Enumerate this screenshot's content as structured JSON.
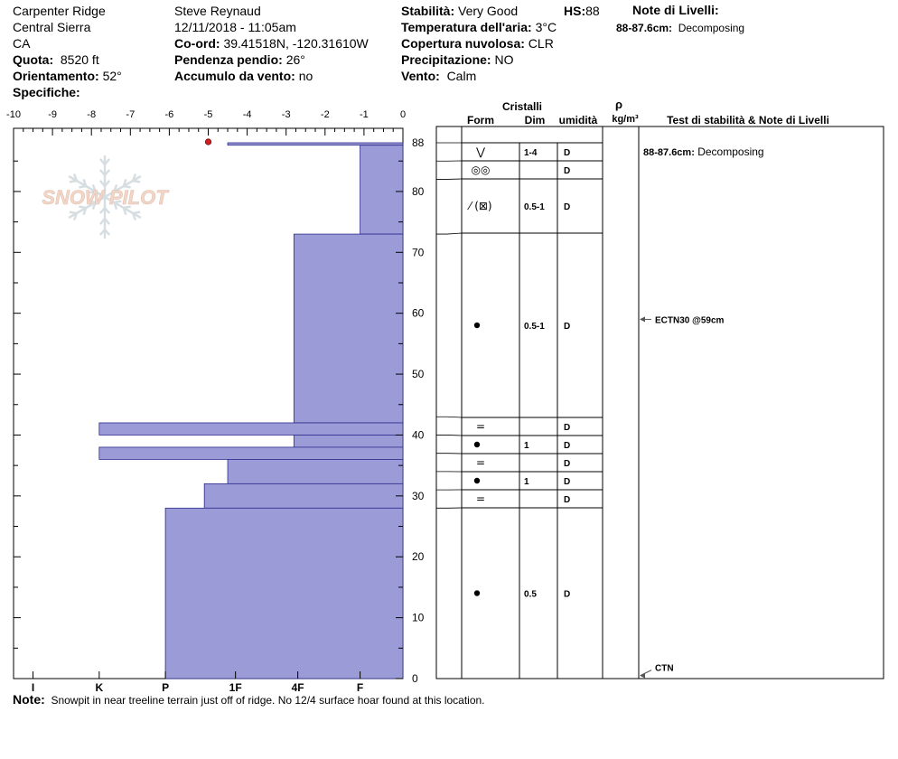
{
  "header": {
    "location": "Carpenter Ridge",
    "range": "Central Sierra",
    "state": "CA",
    "elevation": {
      "label": "Quota:",
      "value": "8520 ft"
    },
    "aspect": {
      "label": "Orientamento:",
      "value": "52°"
    },
    "specifics": {
      "label": "Specifiche:",
      "value": ""
    },
    "observer": "Steve Reynaud",
    "datetime": "12/11/2018 - 11:05am",
    "coords": {
      "label": "Co-ord:",
      "value": "39.41518N, -120.31610W"
    },
    "slope": {
      "label": "Pendenza pendio:",
      "value": "26°"
    },
    "wind_loading": {
      "label": "Accumulo da vento:",
      "value": "no"
    },
    "stability": {
      "label": "Stabilità:",
      "value": "Very Good"
    },
    "hs": {
      "label": "HS:",
      "value": "88"
    },
    "air_temp": {
      "label": "Temperatura dell'aria:",
      "value": "3°C"
    },
    "sky": {
      "label": "Copertura nuvolosa:",
      "value": "CLR"
    },
    "precip": {
      "label": "Precipitazione:",
      "value": "NO"
    },
    "wind": {
      "label": "Vento:",
      "value": "Calm"
    },
    "layer_notes_title": "Note di Livelli:",
    "layer_notes": [
      {
        "range": "88-87.6cm:",
        "text": "Decomposing"
      }
    ]
  },
  "logo": {
    "text": "SNOW PILOT"
  },
  "footer": {
    "label": "Note:",
    "text": "Snowpit in near treeline terrain just off of ridge.  No 12/4 surface hoar found at this location."
  },
  "table_headers": {
    "crystals": "Cristalli",
    "form": "Form",
    "size": "Dim",
    "moisture": "umidità",
    "density": "ρ",
    "density_unit": "kg/m³",
    "tests": "Test di stabilità & Note di Livelli"
  },
  "chart_data": {
    "type": "bar",
    "description_axes": {
      "temperature_ticks": [
        "-10",
        "-9",
        "-8",
        "-7",
        "-6",
        "-5",
        "-4",
        "-3",
        "-2",
        "-1",
        "0"
      ],
      "temperature_range": [
        -10,
        0
      ],
      "height_ticks": [
        "0",
        "10",
        "20",
        "30",
        "40",
        "50",
        "60",
        "70",
        "80",
        "88"
      ],
      "height_range": [
        0,
        88
      ],
      "hardness_ticks": [
        "I",
        "K",
        "P",
        "1F",
        "4F",
        "F"
      ]
    },
    "temperature_points": [
      {
        "temp": -5,
        "height": 88
      }
    ],
    "hardness_layers": [
      {
        "top": 88,
        "bottom": 87.6,
        "hardness": 4.5
      },
      {
        "top": 87.6,
        "bottom": 73,
        "hardness": 1.1
      },
      {
        "top": 73,
        "bottom": 42,
        "hardness": 2.8
      },
      {
        "top": 42,
        "bottom": 40,
        "hardness": 7.8
      },
      {
        "top": 40,
        "bottom": 38,
        "hardness": 2.8
      },
      {
        "top": 38,
        "bottom": 36,
        "hardness": 7.8
      },
      {
        "top": 36,
        "bottom": 32,
        "hardness": 4.5
      },
      {
        "top": 32,
        "bottom": 28,
        "hardness": 5.1
      },
      {
        "top": 28,
        "bottom": 0,
        "hardness": 6.1
      }
    ],
    "hardness_ranges_map": "hardness expressed in temperature-axis units (0 = F side, 10 = I side)",
    "crystal_layers": [
      {
        "top": 88,
        "bottom": 85,
        "form": "⋁",
        "size": "1-4",
        "moisture": "D"
      },
      {
        "top": 85,
        "bottom": 82,
        "form": "◎◎",
        "size": "",
        "moisture": "D"
      },
      {
        "top": 82,
        "bottom": 73,
        "form": "⁄ (⊠)",
        "size": "0.5-1",
        "moisture": "D"
      },
      {
        "top": 73,
        "bottom": 43,
        "form": "●",
        "size": "0.5-1",
        "moisture": "D"
      },
      {
        "top": 43,
        "bottom": 40,
        "form": "=",
        "size": "",
        "moisture": "D"
      },
      {
        "top": 40,
        "bottom": 37,
        "form": "●",
        "size": "1",
        "moisture": "D"
      },
      {
        "top": 37,
        "bottom": 34,
        "form": "=",
        "size": "",
        "moisture": "D"
      },
      {
        "top": 34,
        "bottom": 31,
        "form": "●",
        "size": "1",
        "moisture": "D"
      },
      {
        "top": 31,
        "bottom": 28,
        "form": "=",
        "size": "",
        "moisture": "D"
      },
      {
        "top": 28,
        "bottom": 0,
        "form": "●",
        "size": "0.5",
        "moisture": "D"
      }
    ],
    "notes": [
      {
        "height": 86.5,
        "text": "88-87.6cm: Decomposing"
      },
      {
        "height": 59,
        "text": "ECTN30 @59cm",
        "arrow": true
      },
      {
        "height": 0.5,
        "text": "CTN",
        "arrow": true
      }
    ]
  }
}
